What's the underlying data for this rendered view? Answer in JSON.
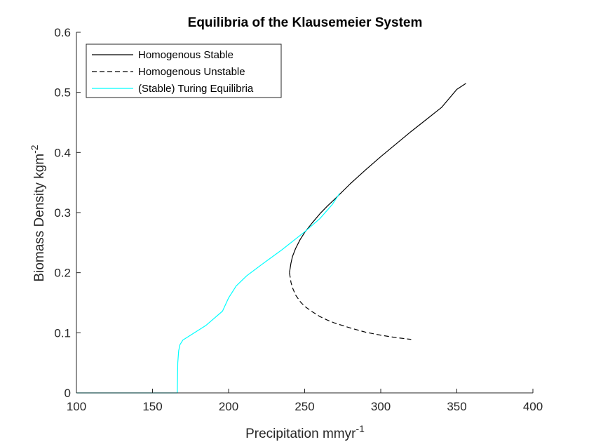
{
  "chart_data": {
    "type": "line",
    "title": "Equilibria of the Klausemeier System",
    "xlabel": "Precipitation mmyr",
    "xlabel_sup": "-1",
    "ylabel": "Biomass Density kgm",
    "ylabel_sup": "-2",
    "xlim": [
      100,
      400
    ],
    "ylim": [
      0,
      0.6
    ],
    "xticks": [
      100,
      150,
      200,
      250,
      300,
      350,
      400
    ],
    "yticks": [
      0,
      0.1,
      0.2,
      0.3,
      0.4,
      0.5,
      0.6
    ],
    "xtick_labels": [
      "100",
      "150",
      "200",
      "250",
      "300",
      "350",
      "400"
    ],
    "ytick_labels": [
      "0",
      "0.1",
      "0.2",
      "0.3",
      "0.4",
      "0.5",
      "0.6"
    ],
    "grid": false,
    "legend_position": "top-left",
    "series": [
      {
        "name": "Homogenous Stable",
        "color": "#000000",
        "style": "solid",
        "x": [
          240,
          241,
          242,
          244,
          247,
          250,
          255,
          260,
          265,
          270,
          280,
          290,
          300,
          310,
          320,
          330,
          340,
          350,
          356
        ],
        "y": [
          0.2,
          0.216,
          0.227,
          0.24,
          0.255,
          0.267,
          0.283,
          0.298,
          0.311,
          0.323,
          0.348,
          0.371,
          0.393,
          0.414,
          0.435,
          0.455,
          0.475,
          0.505,
          0.515
        ]
      },
      {
        "name": "Homogenous Unstable",
        "color": "#000000",
        "style": "dashed",
        "x": [
          240,
          241,
          242,
          244,
          247,
          250,
          255,
          260,
          265,
          270,
          280,
          290,
          300,
          310,
          320
        ],
        "y": [
          0.2,
          0.184,
          0.175,
          0.163,
          0.152,
          0.144,
          0.135,
          0.127,
          0.121,
          0.116,
          0.108,
          0.101,
          0.096,
          0.092,
          0.089
        ]
      },
      {
        "name": "(Stable) Turing Equilibria",
        "color": "#00FFFF",
        "style": "solid",
        "x": [
          100,
          166.3,
          166.6,
          167.2,
          168,
          170,
          175,
          185,
          196,
          200,
          205,
          212,
          222,
          235,
          250,
          260,
          268,
          273
        ],
        "y": [
          0,
          0,
          0.05,
          0.07,
          0.08,
          0.088,
          0.096,
          0.112,
          0.136,
          0.158,
          0.178,
          0.195,
          0.214,
          0.238,
          0.268,
          0.29,
          0.313,
          0.332
        ]
      }
    ]
  }
}
